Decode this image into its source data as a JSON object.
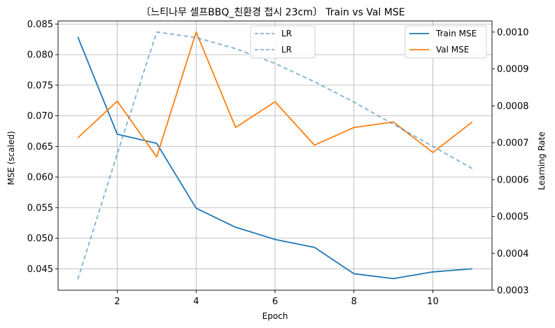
{
  "chart_data": {
    "type": "line",
    "title": "〔느티나무 셀프BBQ_친환경 접시 23cm〕 Train vs Val MSE",
    "xlabel": "Epoch",
    "ylabel_left": "MSE (scaled)",
    "ylabel_right": "Learning Rate",
    "x": [
      1,
      2,
      3,
      4,
      5,
      6,
      7,
      8,
      9,
      10,
      11
    ],
    "xlim": [
      0.5,
      11.5
    ],
    "xticks": [
      2,
      4,
      6,
      8,
      10
    ],
    "ylim_left": [
      0.0415,
      0.0855
    ],
    "yticks_left": [
      "0.045",
      "0.050",
      "0.055",
      "0.060",
      "0.065",
      "0.070",
      "0.075",
      "0.080",
      "0.085"
    ],
    "ylim_right": [
      0.0003,
      0.00103
    ],
    "yticks_right": [
      "0.0003",
      "0.0004",
      "0.0005",
      "0.0006",
      "0.0007",
      "0.0008",
      "0.0009",
      "0.0010"
    ],
    "grid": true,
    "series": [
      {
        "name": "Train MSE",
        "axis": "left",
        "color": "#1f77b4",
        "style": "solid",
        "values": [
          0.0829,
          0.067,
          0.0655,
          0.0549,
          0.0518,
          0.0498,
          0.0485,
          0.0442,
          0.0434,
          0.0445,
          0.045
        ]
      },
      {
        "name": "Val MSE",
        "axis": "left",
        "color": "#ff7f0e",
        "style": "solid",
        "values": [
          0.0664,
          0.0724,
          0.0633,
          0.0837,
          0.0681,
          0.0723,
          0.0652,
          0.0681,
          0.069,
          0.064,
          0.069
        ]
      },
      {
        "name": "LR",
        "axis": "right",
        "color": "#1f77b4",
        "style": "dashed",
        "values": [
          0.00033,
          0.00067,
          0.001,
          0.000985,
          0.000955,
          0.000915,
          0.000865,
          0.00081,
          0.00075,
          0.00069,
          0.00063
        ]
      }
    ],
    "legend_left": {
      "placement": "top-center",
      "entries": [
        "LR",
        "LR"
      ]
    },
    "legend_right": {
      "placement": "top-right",
      "entries": [
        "Train MSE",
        "Val MSE"
      ]
    }
  }
}
